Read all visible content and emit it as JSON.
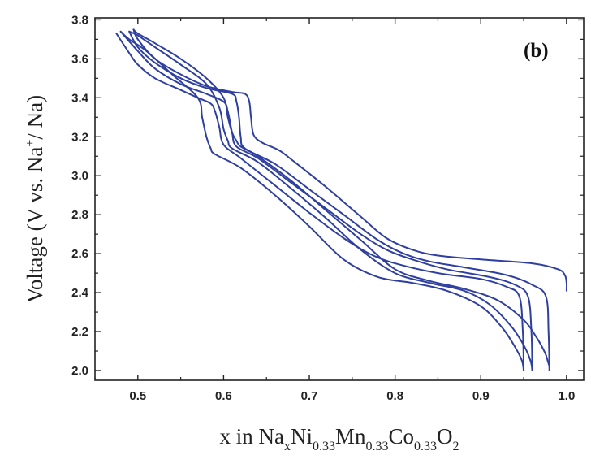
{
  "chart_data": {
    "type": "line",
    "panel_label": "(b)",
    "xlabel_parts": [
      "x in Na",
      "x",
      "Ni",
      "0.33",
      "Mn",
      "0.33",
      "Co",
      "0.33",
      "O",
      "2"
    ],
    "ylabel_parts": [
      "Voltage (V vs. Na",
      "+",
      "/ Na)"
    ],
    "xlim": [
      0.45,
      1.02
    ],
    "ylim": [
      1.95,
      3.81
    ],
    "xticks": [
      0.5,
      0.6,
      0.7,
      0.8,
      0.9,
      1.0
    ],
    "xtick_labels": [
      "0.5",
      "0.6",
      "0.7",
      "0.8",
      "0.9",
      "1.0"
    ],
    "yticks": [
      2.0,
      2.2,
      2.4,
      2.6,
      2.8,
      3.0,
      3.2,
      3.4,
      3.6,
      3.8
    ],
    "ytick_labels": [
      "2.0",
      "2.2",
      "2.4",
      "2.6",
      "2.8",
      "3.0",
      "3.2",
      "3.4",
      "3.6",
      "3.8"
    ],
    "color": "#2e3fa0",
    "series": [
      {
        "x": [
          1.0,
          1.0,
          0.998,
          0.99,
          0.96,
          0.9,
          0.85,
          0.82,
          0.79,
          0.76,
          0.72,
          0.68,
          0.665,
          0.645,
          0.635,
          0.632,
          0.63,
          0.625,
          0.61,
          0.58,
          0.55,
          0.52,
          0.5,
          0.495
        ],
        "y": [
          2.41,
          2.45,
          2.49,
          2.52,
          2.55,
          2.57,
          2.59,
          2.62,
          2.68,
          2.79,
          2.94,
          3.08,
          3.13,
          3.17,
          3.21,
          3.3,
          3.38,
          3.42,
          3.43,
          3.46,
          3.52,
          3.6,
          3.7,
          3.75
        ]
      },
      {
        "x": [
          0.495,
          0.5,
          0.52,
          0.55,
          0.58,
          0.6,
          0.605,
          0.61,
          0.615,
          0.62,
          0.64,
          0.68,
          0.72,
          0.76,
          0.8,
          0.84,
          0.88,
          0.92,
          0.95,
          0.965,
          0.975,
          0.978,
          0.98,
          0.98
        ],
        "y": [
          3.75,
          3.73,
          3.68,
          3.6,
          3.5,
          3.4,
          3.3,
          3.22,
          3.18,
          3.15,
          3.1,
          2.97,
          2.82,
          2.67,
          2.52,
          2.46,
          2.42,
          2.36,
          2.26,
          2.17,
          2.09,
          2.05,
          2.02,
          2.0
        ]
      },
      {
        "x": [
          0.98,
          0.979,
          0.976,
          0.96,
          0.93,
          0.88,
          0.84,
          0.81,
          0.78,
          0.74,
          0.7,
          0.66,
          0.625,
          0.62,
          0.618,
          0.615,
          0.61,
          0.58,
          0.55,
          0.52,
          0.5,
          0.49
        ],
        "y": [
          2.0,
          2.2,
          2.38,
          2.44,
          2.49,
          2.53,
          2.56,
          2.6,
          2.67,
          2.8,
          2.93,
          3.06,
          3.14,
          3.2,
          3.3,
          3.38,
          3.42,
          3.45,
          3.5,
          3.58,
          3.66,
          3.74
        ]
      },
      {
        "x": [
          0.49,
          0.5,
          0.52,
          0.55,
          0.58,
          0.595,
          0.6,
          0.605,
          0.61,
          0.64,
          0.68,
          0.72,
          0.76,
          0.8,
          0.84,
          0.88,
          0.91,
          0.935,
          0.95,
          0.958,
          0.96
        ],
        "y": [
          3.74,
          3.72,
          3.66,
          3.57,
          3.47,
          3.35,
          3.24,
          3.18,
          3.14,
          3.07,
          2.93,
          2.78,
          2.62,
          2.5,
          2.45,
          2.41,
          2.34,
          2.23,
          2.13,
          2.05,
          2.0
        ]
      },
      {
        "x": [
          0.96,
          0.959,
          0.955,
          0.94,
          0.91,
          0.86,
          0.82,
          0.79,
          0.76,
          0.72,
          0.68,
          0.64,
          0.615,
          0.61,
          0.605,
          0.6,
          0.58,
          0.55,
          0.52,
          0.5,
          0.48
        ],
        "y": [
          2.0,
          2.2,
          2.38,
          2.44,
          2.48,
          2.52,
          2.57,
          2.62,
          2.7,
          2.83,
          2.96,
          3.09,
          3.15,
          3.22,
          3.33,
          3.38,
          3.42,
          3.47,
          3.55,
          3.64,
          3.74
        ]
      },
      {
        "x": [
          0.48,
          0.49,
          0.51,
          0.54,
          0.57,
          0.575,
          0.58,
          0.585,
          0.59,
          0.62,
          0.66,
          0.7,
          0.74,
          0.78,
          0.82,
          0.86,
          0.9,
          0.925,
          0.94,
          0.948,
          0.95
        ],
        "y": [
          3.74,
          3.7,
          3.64,
          3.52,
          3.4,
          3.3,
          3.2,
          3.14,
          3.11,
          3.04,
          2.9,
          2.74,
          2.57,
          2.48,
          2.45,
          2.41,
          2.33,
          2.22,
          2.12,
          2.05,
          2.0
        ]
      },
      {
        "x": [
          0.95,
          0.949,
          0.945,
          0.93,
          0.9,
          0.85,
          0.8,
          0.77,
          0.74,
          0.7,
          0.66,
          0.62,
          0.6,
          0.595,
          0.59,
          0.585,
          0.57,
          0.55,
          0.52,
          0.5,
          0.49,
          0.475
        ],
        "y": [
          2.0,
          2.2,
          2.38,
          2.43,
          2.47,
          2.5,
          2.55,
          2.6,
          2.68,
          2.81,
          2.95,
          3.09,
          3.16,
          3.25,
          3.33,
          3.37,
          3.4,
          3.44,
          3.5,
          3.57,
          3.63,
          3.73
        ]
      }
    ]
  }
}
